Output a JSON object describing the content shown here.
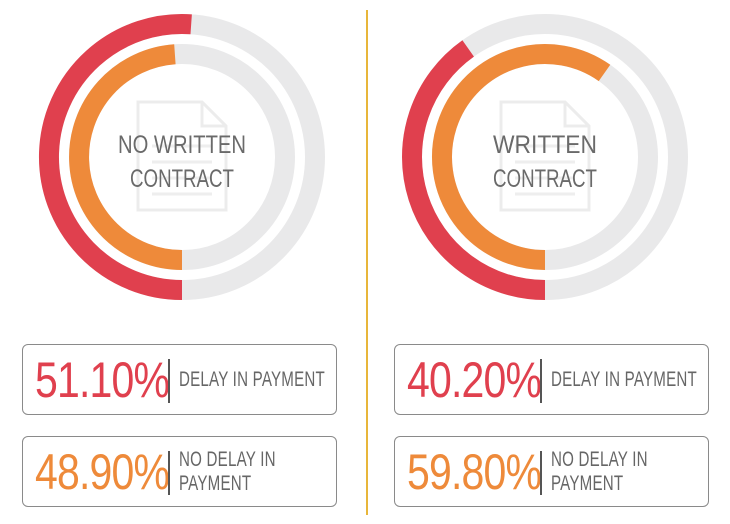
{
  "colors": {
    "delay": "#e0404e",
    "no_delay": "#ee8a3a",
    "track": "#e9e9ea",
    "divider": "#e8b63a",
    "center_text": "#6a6a6a"
  },
  "chart_data": [
    {
      "type": "pie",
      "title": "NO WRITTEN CONTRACT",
      "title_lines": [
        "NO WRITTEN",
        "CONTRACT"
      ],
      "center_icon": "document-icon",
      "series": [
        {
          "name": "DELAY IN PAYMENT",
          "value": 51.1,
          "label": "51.10%"
        },
        {
          "name": "NO DELAY IN PAYMENT",
          "value": 48.9,
          "label": "48.90%"
        }
      ]
    },
    {
      "type": "pie",
      "title": "WRITTEN CONTRACT",
      "title_lines": [
        "WRITTEN",
        "CONTRACT"
      ],
      "center_icon": "document-icon",
      "series": [
        {
          "name": "DELAY IN PAYMENT",
          "value": 40.2,
          "label": "40.20%"
        },
        {
          "name": "NO DELAY IN PAYMENT",
          "value": 59.8,
          "label": "59.80%"
        }
      ]
    }
  ],
  "labels": {
    "delay": "DELAY IN PAYMENT",
    "no_delay": "NO DELAY IN PAYMENT"
  }
}
